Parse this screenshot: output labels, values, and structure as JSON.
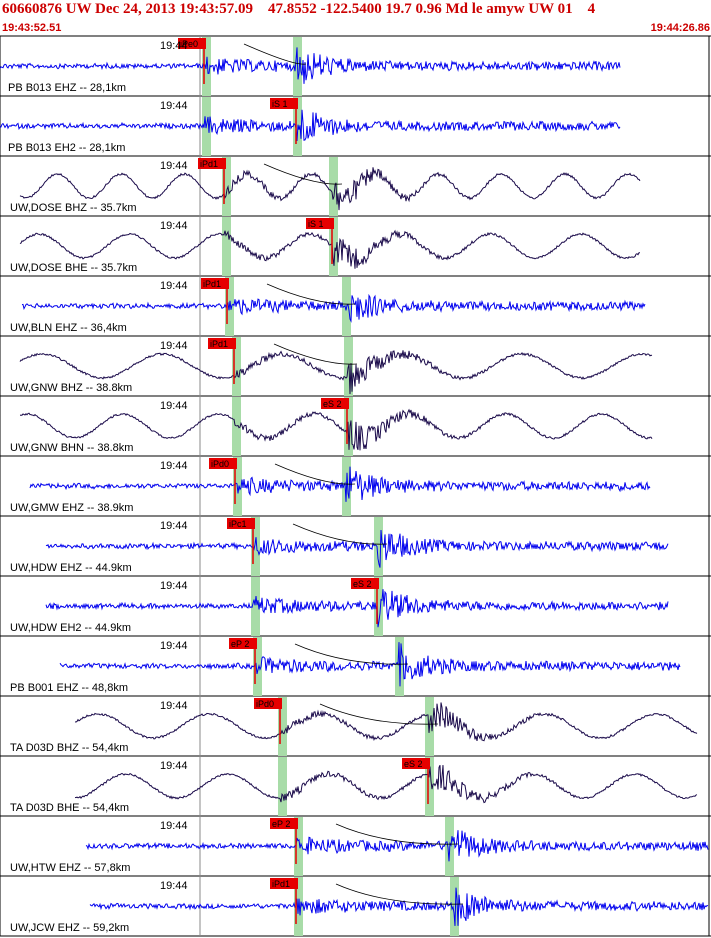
{
  "header": {
    "title": "60660876 UW Dec 24, 2013 19:43:57.09    47.8552 -122.5400 19.7 0.96 Md le amyw UW 01    4",
    "start_time": "19:43:52.51",
    "end_time": "19:44:26.86"
  },
  "colors": {
    "header": "#cc0000",
    "pick": "#e60000",
    "window": "#a8dca8",
    "trace_blue": "#0000ee",
    "trace_dark": "#1a0a4a",
    "minute_tick": "#888888"
  },
  "minute_label": "19:44",
  "traces": [
    {
      "label": "PB B013 EHZ -- 28,1km",
      "pick": "iPe0",
      "color": "blue",
      "kind": "hf"
    },
    {
      "label": "PB B013 EH2 -- 28,1km",
      "pick": "iS 1",
      "color": "blue",
      "kind": "hf"
    },
    {
      "label": "UW,DOSE BHZ -- 35.7km",
      "pick": "iPd1",
      "color": "dark",
      "kind": "lf"
    },
    {
      "label": "UW,DOSE BHE -- 35.7km",
      "pick": "iS 1",
      "color": "dark",
      "kind": "lf"
    },
    {
      "label": "UW,BLN EHZ -- 36,4km",
      "pick": "iPd1",
      "color": "blue",
      "kind": "hf"
    },
    {
      "label": "UW,GNW BHZ -- 38.8km",
      "pick": "iPd1",
      "color": "dark",
      "kind": "lf"
    },
    {
      "label": "UW,GNW BHN -- 38.8km",
      "pick": "eS 2",
      "color": "dark",
      "kind": "lf"
    },
    {
      "label": "UW,GMW EHZ -- 38.9km",
      "pick": "iPd0",
      "color": "blue",
      "kind": "hf"
    },
    {
      "label": "UW,HDW EHZ -- 44.9km",
      "pick": "iPc1",
      "color": "blue",
      "kind": "hf"
    },
    {
      "label": "UW,HDW EH2 -- 44.9km",
      "pick": "eS 2",
      "color": "blue",
      "kind": "hf"
    },
    {
      "label": "PB B001 EHZ -- 48,8km",
      "pick": "eP 2",
      "color": "blue",
      "kind": "hf"
    },
    {
      "label": "TA D03D BHZ -- 54,4km",
      "pick": "iPd0",
      "color": "dark",
      "kind": "lf"
    },
    {
      "label": "TA D03D BHE -- 54,4km",
      "pick": "eS 2",
      "color": "dark",
      "kind": "lf"
    },
    {
      "label": "UW,HTW EHZ -- 57,8km",
      "pick": "eP 2",
      "color": "blue",
      "kind": "hf"
    },
    {
      "label": "UW,JCW EHZ -- 59,2km",
      "pick": "iPd1",
      "color": "blue",
      "kind": "hf"
    }
  ]
}
